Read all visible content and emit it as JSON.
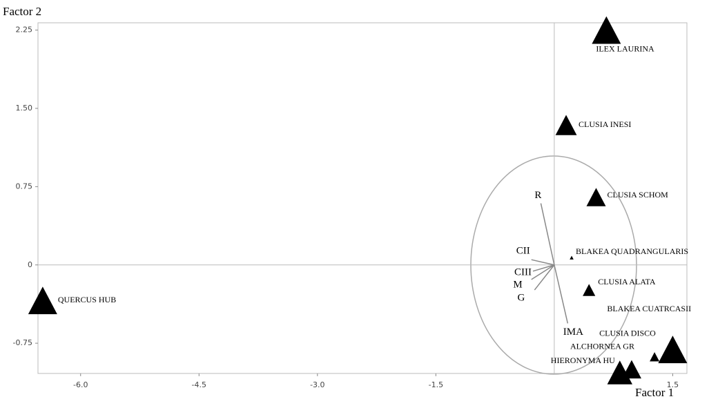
{
  "chart_data": {
    "type": "biplot",
    "x_label": "Factor 1",
    "y_label": "Factor 2",
    "xlim": [
      -6.54,
      1.68
    ],
    "ylim": [
      -1.04,
      2.32
    ],
    "xticks": [
      {
        "value": -6.0,
        "label": "-6.0"
      },
      {
        "value": -4.5,
        "label": "-4.5"
      },
      {
        "value": -3.0,
        "label": "-3.0"
      },
      {
        "value": -1.5,
        "label": "-1.5"
      },
      1.5
    ],
    "yticks": [
      {
        "value": 2.25,
        "label": "2.25"
      },
      {
        "value": 1.5,
        "label": "1.50"
      },
      0.75,
      0,
      -0.75
    ],
    "points": {
      "names": [
        "ILEX LAURINA",
        "CLUSIA INESI",
        "CLUSIA SCHOM",
        "BLAKEA QUADRANGULARIS",
        "CLUSIA ALATA",
        "QUERCUS HUB",
        "BLAKEA CUATRCASII",
        "CLUSIA DISCO",
        "ALCHORNEA GR",
        "HIERONYMA HU"
      ],
      "x": [
        0.66,
        0.15,
        0.53,
        0.22,
        0.44,
        -6.48,
        1.5,
        1.27,
        0.98,
        0.83
      ],
      "y": [
        2.25,
        1.34,
        0.65,
        0.07,
        -0.24,
        -0.34,
        -0.81,
        -0.88,
        -1.0,
        -1.03
      ],
      "sizes": [
        3,
        2.2,
        2,
        0.4,
        1.3,
        3,
        3,
        1,
        2,
        2.6
      ],
      "color": "#000000"
    },
    "vectors": {
      "names": [
        "R",
        "CII",
        "CIII",
        "M",
        "G",
        "IMA"
      ],
      "x": [
        -0.17,
        -0.29,
        -0.27,
        -0.29,
        -0.25,
        0.17
      ],
      "y": [
        0.59,
        0.05,
        -0.06,
        -0.14,
        -0.24,
        -0.56
      ],
      "color": "#888888"
    }
  }
}
